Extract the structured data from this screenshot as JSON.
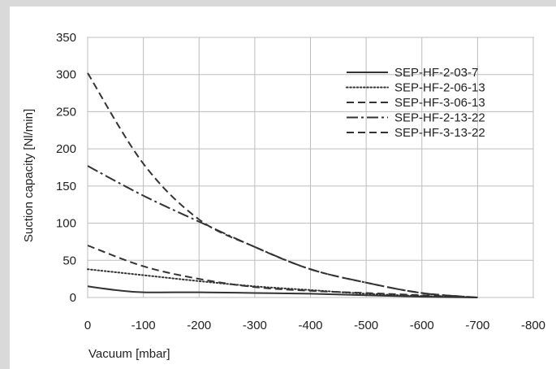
{
  "chart_data": {
    "type": "line",
    "title": "",
    "xlabel": "Vacuum [mbar]",
    "ylabel": "Suction capacity [Nl/min]",
    "xlim": [
      0,
      -800
    ],
    "ylim": [
      0,
      350
    ],
    "x_ticks": [
      0,
      -100,
      -200,
      -300,
      -400,
      -500,
      -600,
      -700,
      -800
    ],
    "y_ticks": [
      0,
      50,
      100,
      150,
      200,
      250,
      300,
      350
    ],
    "grid": true,
    "legend_position": "top-right",
    "series": [
      {
        "name": "SEP-HF-2-03-7",
        "dash": "solid",
        "x": [
          0,
          -50,
          -100,
          -200,
          -300,
          -400,
          -500,
          -600,
          -700
        ],
        "y": [
          15,
          10,
          7,
          7,
          6,
          5,
          3,
          1,
          0
        ]
      },
      {
        "name": "SEP-HF-2-06-13",
        "dash": "dotted",
        "x": [
          0,
          -100,
          -200,
          -300,
          -400,
          -500,
          -600,
          -700
        ],
        "y": [
          38,
          30,
          22,
          15,
          10,
          5,
          2,
          0
        ]
      },
      {
        "name": "SEP-HF-3-06-13",
        "dash": "dashed",
        "x": [
          0,
          -100,
          -200,
          -300,
          -400,
          -500,
          -600,
          -700
        ],
        "y": [
          70,
          42,
          25,
          14,
          9,
          6,
          3,
          0
        ]
      },
      {
        "name": "SEP-HF-2-13-22",
        "dash": "dashdot",
        "x": [
          0,
          -100,
          -200,
          -300,
          -400,
          -500,
          -600,
          -700
        ],
        "y": [
          177,
          137,
          102,
          68,
          38,
          20,
          6,
          0
        ]
      },
      {
        "name": "SEP-HF-3-13-22",
        "dash": "dashed",
        "x": [
          0,
          -100,
          -200,
          -300,
          -400,
          -500,
          -600,
          -700
        ],
        "y": [
          302,
          180,
          105,
          68,
          38,
          20,
          6,
          0
        ]
      }
    ]
  }
}
